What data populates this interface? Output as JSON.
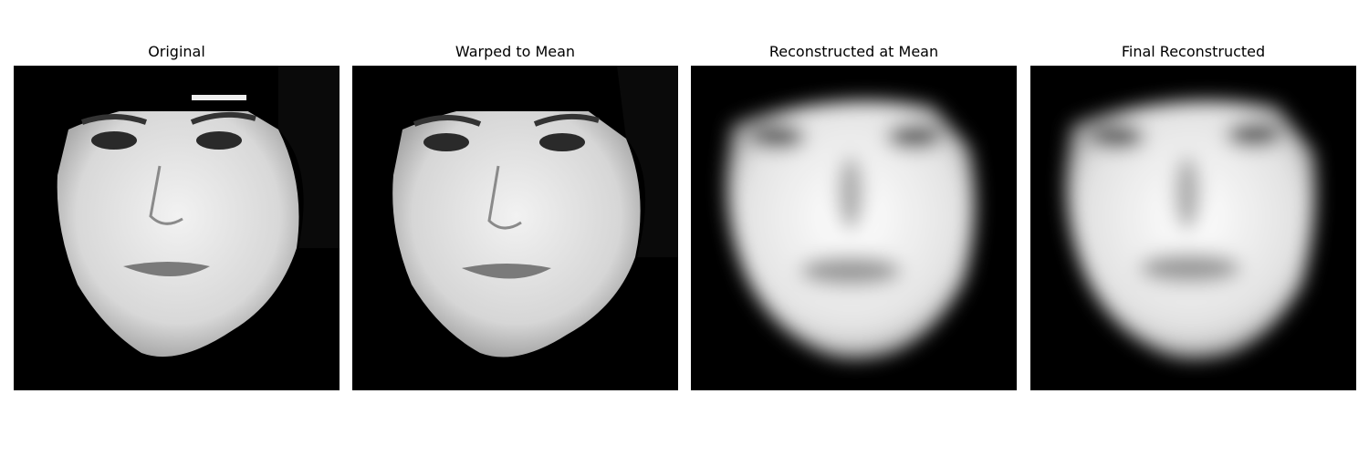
{
  "figure": {
    "panels": [
      {
        "title": "Original"
      },
      {
        "title": "Warped to Mean"
      },
      {
        "title": "Reconstructed at Mean"
      },
      {
        "title": "Final Reconstructed"
      }
    ]
  }
}
